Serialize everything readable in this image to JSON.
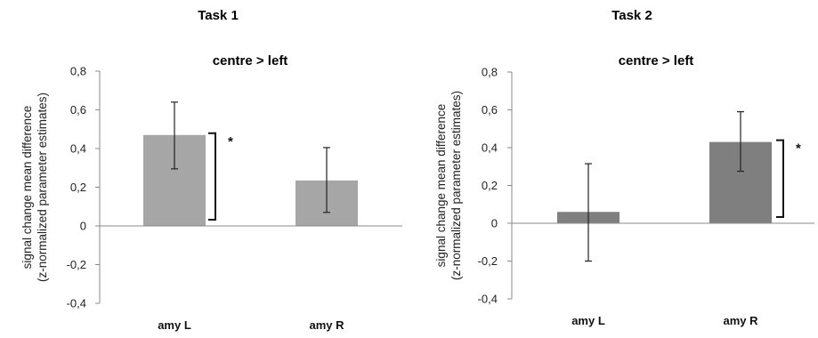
{
  "chart_data": [
    {
      "type": "bar",
      "panel_title": "Task 1",
      "title": "centre > left",
      "ylabel_line1": "signal change mean difference",
      "ylabel_line2": "(z-normalized parameter estimates)",
      "categories": [
        "amy L",
        "amy R"
      ],
      "values": [
        0.47,
        0.235
      ],
      "error_low": [
        0.295,
        0.07
      ],
      "error_high": [
        0.64,
        0.405
      ],
      "ylim": [
        -0.4,
        0.8
      ],
      "yticks": [
        "0,8",
        "0,6",
        "0,4",
        "0,2",
        "0",
        "-0,2",
        "-0,4"
      ],
      "ytick_values": [
        0.8,
        0.6,
        0.4,
        0.2,
        0,
        -0.2,
        -0.4
      ],
      "bar_color": "#a6a6a6",
      "significance": [
        {
          "category_index": 0,
          "label": "*"
        }
      ],
      "grid": false
    },
    {
      "type": "bar",
      "panel_title": "Task 2",
      "title": "centre > left",
      "ylabel_line1": "signal change mean difference",
      "ylabel_line2": "(z-normalized parameter estimates)",
      "categories": [
        "amy L",
        "amy R"
      ],
      "values": [
        0.06,
        0.43
      ],
      "error_low": [
        -0.2,
        0.275
      ],
      "error_high": [
        0.315,
        0.59
      ],
      "ylim": [
        -0.4,
        0.8
      ],
      "yticks": [
        "0,8",
        "0,6",
        "0,4",
        "0,2",
        "0",
        "-0,2",
        "-0,4"
      ],
      "ytick_values": [
        0.8,
        0.6,
        0.4,
        0.2,
        0,
        -0.2,
        -0.4
      ],
      "bar_color": "#7f7f7f",
      "significance": [
        {
          "category_index": 1,
          "label": "*"
        }
      ],
      "grid": false
    }
  ]
}
